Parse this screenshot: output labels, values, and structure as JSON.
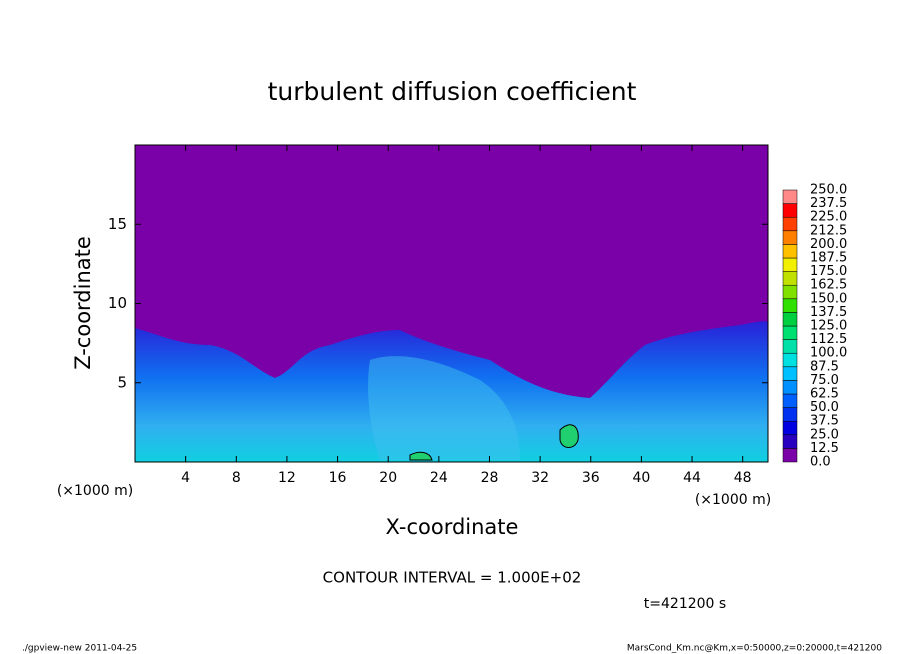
{
  "chart_data": {
    "type": "contour",
    "title": "turbulent diffusion coefficient",
    "x_label": "X-coordinate",
    "y_label": "Z-coordinate",
    "x_unit_labels": [
      "(×1000 m)",
      "(×1000 m)"
    ],
    "xlim": [
      0,
      50
    ],
    "xticks": [
      4,
      8,
      12,
      16,
      20,
      24,
      28,
      32,
      36,
      40,
      44,
      48
    ],
    "ylim": [
      0,
      20
    ],
    "yticks": [
      5,
      10,
      15
    ],
    "colorbar": {
      "levels": [
        {
          "value": 0,
          "label": "0.0"
        },
        12.5,
        {
          "value": 25,
          "label": "25.0"
        },
        37.5,
        {
          "value": 50,
          "label": "50.0"
        },
        62.5,
        {
          "value": 75,
          "label": "75.0"
        },
        87.5,
        {
          "value": 100,
          "label": "100.0"
        },
        112.5,
        {
          "value": 125,
          "label": "125.0"
        },
        137.5,
        {
          "value": 150,
          "label": "150.0"
        },
        162.5,
        {
          "value": 175,
          "label": "175.0"
        },
        187.5,
        {
          "value": 200,
          "label": "200.0"
        },
        212.5,
        {
          "value": 225,
          "label": "225.0"
        },
        237.5,
        {
          "value": 250,
          "label": "250.0"
        }
      ],
      "colors": [
        "#7a00a8",
        "#2a00c0",
        "#0000e0",
        "#0030f0",
        "#0060ff",
        "#0090ff",
        "#00c0ff",
        "#00e0e0",
        "#00e0a8",
        "#00e070",
        "#00d040",
        "#30e000",
        "#80e000",
        "#c0e000",
        "#f0f000",
        "#ffc000",
        "#ff8000",
        "#ff4000",
        "#ff0000",
        "#ff8888"
      ]
    },
    "contour_interval": "CONTOUR INTERVAL = 1.000E+02",
    "time_label": "t=421200 s",
    "footer_left": "./gpview-new   2011-04-25",
    "footer_right": "MarsCond_Km.nc@Km,x=0:50000,z=0:20000,t=421200"
  }
}
